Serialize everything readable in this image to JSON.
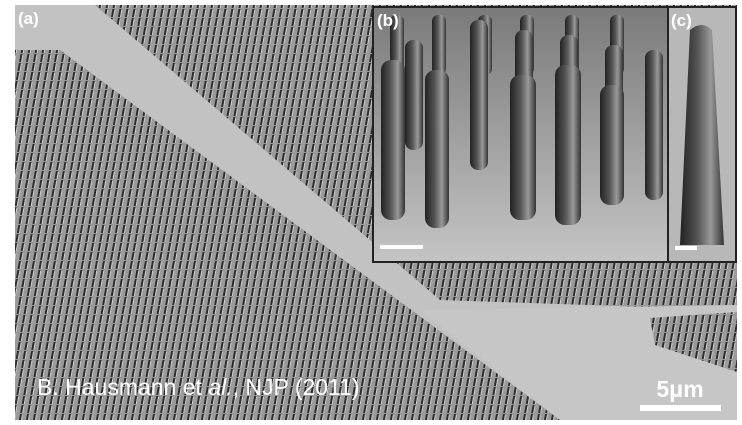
{
  "panels": [
    {
      "label": "(a)"
    },
    {
      "label": "(b)"
    },
    {
      "label": "(c)"
    }
  ],
  "citation": {
    "before": "B. Hausmann e",
    "mid": "t ",
    "italic": "al.",
    "after": ", NJP  (2011)"
  },
  "scale_bar": {
    "label": "5μm"
  }
}
